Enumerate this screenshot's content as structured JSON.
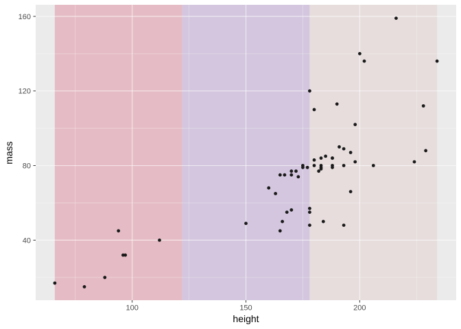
{
  "chart_data": {
    "type": "scatter",
    "title": "",
    "xlabel": "height",
    "ylabel": "mass",
    "xlim": [
      57.6,
      242.4
    ],
    "ylim": [
      7.8,
      166.2
    ],
    "x_major_ticks": [
      100,
      150,
      200
    ],
    "x_minor_ticks": [
      75,
      125,
      175,
      225
    ],
    "y_major_ticks": [
      40,
      80,
      120,
      160
    ],
    "y_minor_ticks": [
      20,
      60,
      100,
      140
    ],
    "grid": "on",
    "legend": "none",
    "panel_bg_color": "#ebebeb",
    "gridline_color_major": "rgba(255,255,255,0.60)",
    "gridline_color_minor": "rgba(255,255,255,0.40)",
    "tick_mark_color": "#333333",
    "tick_label_color": "#4d4d4d",
    "point_color": "#1a1a1a",
    "bands": [
      {
        "name": "height-band-low",
        "x_from": 66,
        "x_to": 122,
        "color": "#e5bcc5"
      },
      {
        "name": "height-band-mid",
        "x_from": 122,
        "x_to": 178,
        "color": "#d3c6de"
      },
      {
        "name": "height-band-high",
        "x_from": 178,
        "x_to": 234,
        "color": "#e7dddd"
      }
    ],
    "points": [
      [
        172,
        77
      ],
      [
        167,
        75
      ],
      [
        96,
        32
      ],
      [
        202,
        136
      ],
      [
        150,
        49
      ],
      [
        178,
        120
      ],
      [
        165,
        75
      ],
      [
        97,
        32
      ],
      [
        183,
        84
      ],
      [
        182,
        77
      ],
      [
        188,
        84
      ],
      [
        228,
        112
      ],
      [
        180,
        80
      ],
      [
        173,
        74
      ],
      [
        170,
        77
      ],
      [
        180,
        110
      ],
      [
        66,
        17
      ],
      [
        170,
        75
      ],
      [
        183,
        78.2
      ],
      [
        200,
        140
      ],
      [
        190,
        113
      ],
      [
        177,
        79
      ],
      [
        175,
        79
      ],
      [
        180,
        83
      ],
      [
        88,
        20
      ],
      [
        160,
        68
      ],
      [
        193,
        89
      ],
      [
        191,
        90
      ],
      [
        196,
        66
      ],
      [
        224,
        82
      ],
      [
        112,
        40
      ],
      [
        175,
        80
      ],
      [
        178,
        55
      ],
      [
        94,
        45
      ],
      [
        163,
        65
      ],
      [
        188,
        84
      ],
      [
        198,
        82
      ],
      [
        196,
        87
      ],
      [
        184,
        50
      ],
      [
        188,
        80
      ],
      [
        185,
        85
      ],
      [
        183,
        80
      ],
      [
        170,
        56.2
      ],
      [
        166,
        50
      ],
      [
        193,
        80
      ],
      [
        183,
        79
      ],
      [
        168,
        55
      ],
      [
        198,
        102
      ],
      [
        229,
        88
      ],
      [
        79,
        15
      ],
      [
        193,
        48
      ],
      [
        178,
        57
      ],
      [
        216,
        159
      ],
      [
        234,
        136
      ],
      [
        188,
        79
      ],
      [
        178,
        48
      ],
      [
        206,
        80
      ],
      [
        165,
        45
      ]
    ]
  }
}
